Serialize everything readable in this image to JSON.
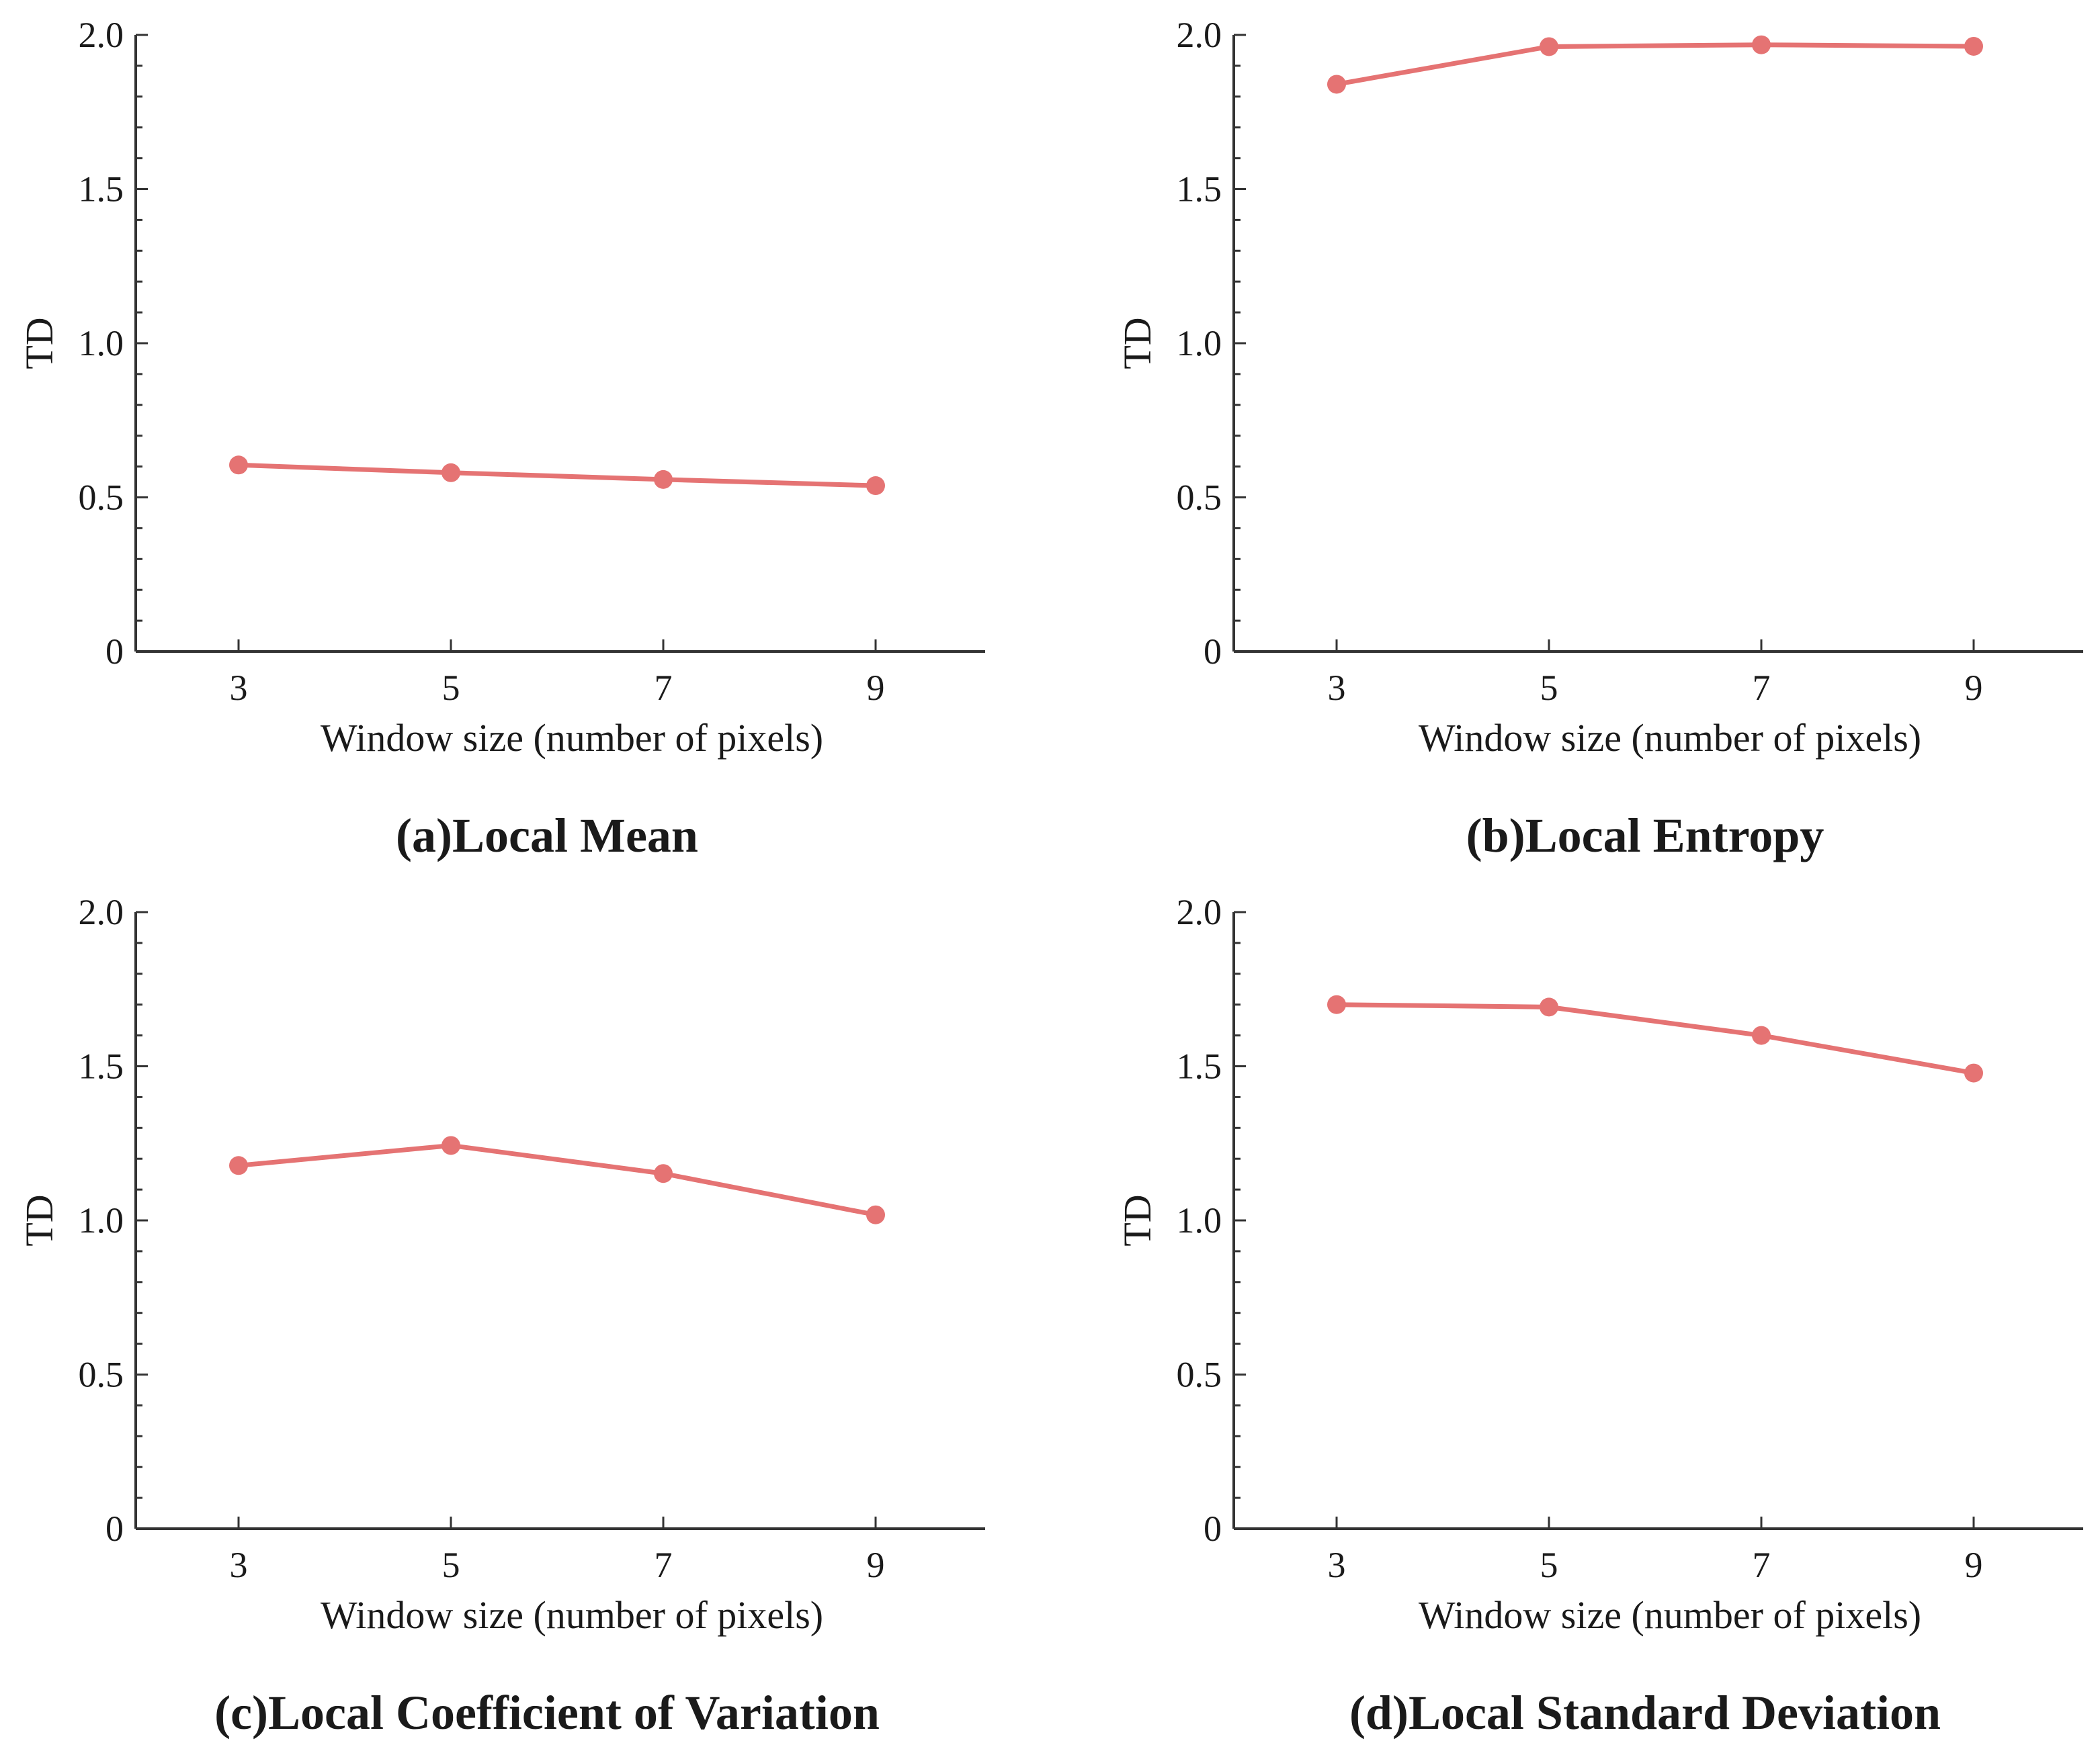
{
  "colors": {
    "line": "#e57373",
    "axis": "#333333",
    "text": "#1a1a1a"
  },
  "chart_data": [
    {
      "type": "line",
      "caption": "(a)Local Mean",
      "xlabel": "Window size (number of pixels)",
      "ylabel": "TD",
      "x": [
        3,
        5,
        7,
        9
      ],
      "xticks": [
        "3",
        "5",
        "7",
        "9"
      ],
      "ylim": [
        0,
        2.0
      ],
      "yticks": [
        "0",
        "0.5",
        "1.0",
        "1.5",
        "2.0"
      ],
      "series": [
        {
          "values": [
            0.605,
            0.58,
            0.558,
            0.538
          ]
        }
      ],
      "grid": false
    },
    {
      "type": "line",
      "caption": "(b)Local Entropy",
      "xlabel": "Window size (number of pixels)",
      "ylabel": "TD",
      "x": [
        3,
        5,
        7,
        9
      ],
      "xticks": [
        "3",
        "5",
        "7",
        "9"
      ],
      "ylim": [
        0,
        2.0
      ],
      "yticks": [
        "0",
        "0.5",
        "1.0",
        "1.5",
        "2.0"
      ],
      "series": [
        {
          "values": [
            1.84,
            1.962,
            1.968,
            1.963
          ]
        }
      ],
      "grid": false
    },
    {
      "type": "line",
      "caption": "(c)Local Coefficient of Variation",
      "xlabel": "Window size (number of pixels)",
      "ylabel": "TD",
      "x": [
        3,
        5,
        7,
        9
      ],
      "xticks": [
        "3",
        "5",
        "7",
        "9"
      ],
      "ylim": [
        0,
        2.0
      ],
      "yticks": [
        "0",
        "0.5",
        "1.0",
        "1.5",
        "2.0"
      ],
      "series": [
        {
          "values": [
            1.178,
            1.243,
            1.152,
            1.018
          ]
        }
      ],
      "grid": false
    },
    {
      "type": "line",
      "caption": "(d)Local Standard Deviation",
      "xlabel": "Window size (number of pixels)",
      "ylabel": "TD",
      "x": [
        3,
        5,
        7,
        9
      ],
      "xticks": [
        "3",
        "5",
        "7",
        "9"
      ],
      "ylim": [
        0,
        2.0
      ],
      "yticks": [
        "0",
        "0.5",
        "1.0",
        "1.5",
        "2.0"
      ],
      "series": [
        {
          "values": [
            1.7,
            1.692,
            1.6,
            1.478
          ]
        }
      ],
      "grid": false
    }
  ]
}
